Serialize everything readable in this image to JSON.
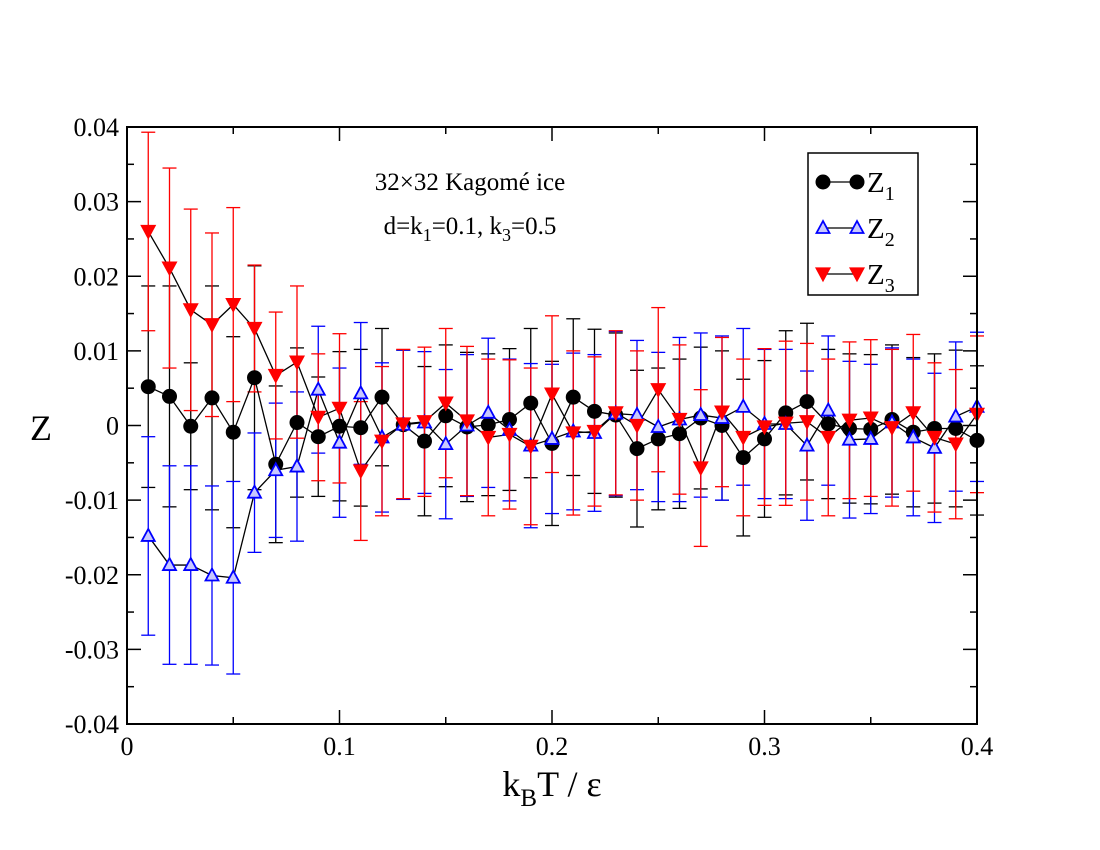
{
  "chart_data": {
    "type": "scatter",
    "xlabel_main": "k",
    "xlabel_sub": "B",
    "xlabel_rest": "T / ε",
    "ylabel": "Z",
    "xlim": [
      0,
      0.4
    ],
    "ylim": [
      -0.04,
      0.04
    ],
    "xticks": [
      0,
      0.1,
      0.2,
      0.3,
      0.4
    ],
    "xtick_labels": [
      "0",
      "0.1",
      "0.2",
      "0.3",
      "0.4"
    ],
    "yticks": [
      -0.04,
      -0.03,
      -0.02,
      -0.01,
      0,
      0.01,
      0.02,
      0.03,
      0.04
    ],
    "ytick_labels": [
      "-0.04",
      "-0.03",
      "-0.02",
      "-0.01",
      "0",
      "0.01",
      "0.02",
      "0.03",
      "0.04"
    ],
    "annotation": {
      "line1": "32×32 Kagomé ice",
      "line2_a": "d=k",
      "line2_sub1": "1",
      "line2_b": "=0.1, k",
      "line2_sub2": "3",
      "line2_c": "=0.5"
    },
    "x": [
      0.01,
      0.02,
      0.03,
      0.04,
      0.05,
      0.06,
      0.07,
      0.08,
      0.09,
      0.1,
      0.11,
      0.12,
      0.13,
      0.14,
      0.15,
      0.16,
      0.17,
      0.18,
      0.19,
      0.2,
      0.21,
      0.22,
      0.23,
      0.24,
      0.25,
      0.26,
      0.27,
      0.28,
      0.29,
      0.3,
      0.31,
      0.32,
      0.33,
      0.34,
      0.35,
      0.36,
      0.37,
      0.38,
      0.39,
      0.4
    ],
    "series": [
      {
        "name": "Z1",
        "label_main": "Z",
        "label_sub": "1",
        "color": "#000000",
        "marker": "circle",
        "values": [
          0.0052,
          0.0039,
          -0.0001,
          0.0037,
          -0.0009,
          0.0064,
          -0.0052,
          0.0004,
          -0.0015,
          -0.0001,
          -0.0003,
          0.0038,
          0.0001,
          -0.0021,
          0.0013,
          -0.0002,
          0.0001,
          0.0008,
          0.003,
          -0.0024,
          0.0038,
          0.0019,
          0.0014,
          -0.0031,
          -0.0018,
          -0.0011,
          0.001,
          0.0,
          -0.0043,
          -0.0018,
          0.0017,
          0.0032,
          0.0002,
          -0.0004,
          -0.0005,
          0.0008,
          -0.0009,
          -0.0004,
          -0.0004,
          -0.002
        ],
        "errors": [
          0.0135,
          0.0148,
          0.0085,
          0.015,
          0.0128,
          0.015,
          0.0105,
          0.01,
          0.008,
          0.01,
          0.0105,
          0.0092,
          0.01,
          0.01,
          0.0095,
          0.01,
          0.0095,
          0.0095,
          0.01,
          0.011,
          0.0105,
          0.011,
          0.011,
          0.0105,
          0.0095,
          0.01,
          0.0095,
          0.01,
          0.0105,
          0.0105,
          0.011,
          0.0105,
          0.01,
          0.01,
          0.01,
          0.01,
          0.01,
          0.01,
          0.0105,
          0.01
        ]
      },
      {
        "name": "Z2",
        "label_main": "Z",
        "label_sub": "2",
        "color": "#0000ff",
        "marker": "triangle-up",
        "values": [
          -0.0148,
          -0.0187,
          -0.0187,
          -0.0201,
          -0.0204,
          -0.009,
          -0.006,
          -0.0055,
          0.0048,
          -0.0023,
          0.0043,
          -0.0016,
          0.0001,
          0.0004,
          -0.0025,
          0.0,
          0.0017,
          -0.0006,
          -0.0027,
          -0.0018,
          -0.0008,
          -0.001,
          0.0016,
          0.0014,
          -0.0002,
          0.0008,
          0.0014,
          0.001,
          0.0025,
          0.0002,
          0.0002,
          -0.0027,
          0.002,
          -0.0019,
          -0.0018,
          0.0004,
          -0.0016,
          -0.003,
          0.0012,
          0.0025
        ],
        "errors": [
          0.0133,
          0.0133,
          0.0133,
          0.012,
          0.0129,
          0.008,
          0.009,
          0.01,
          0.0085,
          0.01,
          0.0095,
          0.01,
          0.01,
          0.0095,
          0.01,
          0.0095,
          0.01,
          0.0095,
          0.011,
          0.01,
          0.0105,
          0.0105,
          0.011,
          0.01,
          0.01,
          0.011,
          0.011,
          0.011,
          0.0105,
          0.01,
          0.01,
          0.01,
          0.01,
          0.0105,
          0.01,
          0.01,
          0.0105,
          0.01,
          0.01,
          0.01
        ]
      },
      {
        "name": "Z3",
        "label_main": "Z",
        "label_sub": "3",
        "color": "#ff0000",
        "marker": "triangle-down",
        "values": [
          0.026,
          0.0211,
          0.0155,
          0.0135,
          0.0162,
          0.013,
          0.0067,
          0.0085,
          0.0011,
          0.0023,
          -0.0061,
          -0.0021,
          0.0002,
          0.0005,
          0.003,
          0.0006,
          -0.0016,
          -0.0012,
          -0.0028,
          0.0042,
          -0.001,
          -0.0008,
          0.0017,
          0.0,
          0.0048,
          0.0008,
          -0.0057,
          0.0018,
          -0.0016,
          -0.0002,
          0.0003,
          0.0005,
          -0.0016,
          0.0007,
          0.001,
          -0.0003,
          0.0017,
          -0.0016,
          -0.0025,
          0.0015
        ],
        "errors": [
          0.0133,
          0.0134,
          0.0135,
          0.0123,
          0.013,
          0.0085,
          0.0085,
          0.0102,
          0.0085,
          0.01,
          0.0093,
          0.01,
          0.01,
          0.01,
          0.01,
          0.01,
          0.0105,
          0.01,
          0.0105,
          0.0105,
          0.011,
          0.01,
          0.011,
          0.01,
          0.011,
          0.01,
          0.0105,
          0.01,
          0.0105,
          0.0105,
          0.011,
          0.0105,
          0.0105,
          0.0105,
          0.0105,
          0.0105,
          0.0105,
          0.01,
          0.01,
          0.0105
        ]
      }
    ]
  }
}
